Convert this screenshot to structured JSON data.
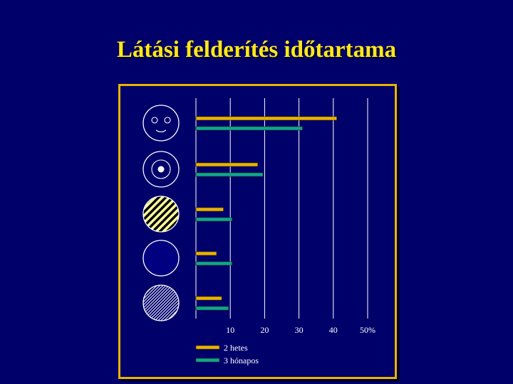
{
  "title": "Látási felderítés időtartama",
  "chart_data": {
    "type": "bar",
    "orientation": "horizontal",
    "categories": [
      "face-icon",
      "target-circle-icon",
      "striped-circle-icon",
      "dark-circle-icon",
      "hatched-circle-icon"
    ],
    "series": [
      {
        "name": "2 hetes",
        "color": "#e8b400",
        "values": [
          41,
          18,
          8,
          6,
          7.5
        ]
      },
      {
        "name": "3 hónapos",
        "color": "#0aa890",
        "values": [
          31,
          19.5,
          10.5,
          10.5,
          9.5
        ]
      }
    ],
    "x_ticks": [
      "10",
      "20",
      "30",
      "40",
      "50%"
    ],
    "xlim": [
      0,
      50
    ],
    "grid": true,
    "legend_position": "bottom-left"
  }
}
